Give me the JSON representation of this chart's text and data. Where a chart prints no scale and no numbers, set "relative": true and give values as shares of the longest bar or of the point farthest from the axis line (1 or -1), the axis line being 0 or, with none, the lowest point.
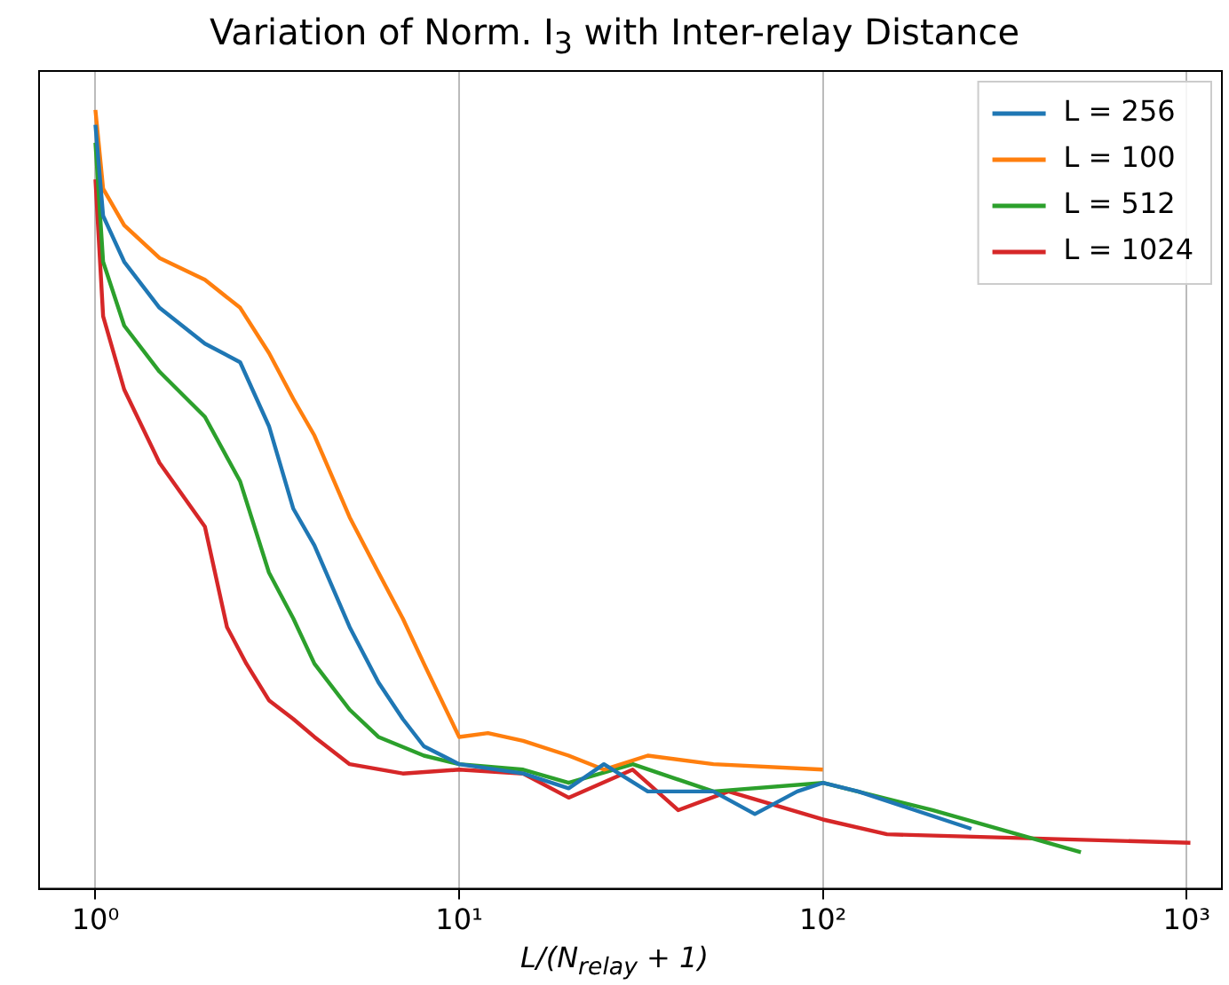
{
  "chart_data": {
    "type": "line",
    "title": "Variation of Norm. I$_{3}$ with Inter-relay Distance",
    "xlabel": "L/(N$_{relay}$ + 1)",
    "log": "x",
    "relative": true,
    "xlim": [
      0.7,
      1250
    ],
    "xticks": [
      {
        "value": 1,
        "label": "10⁰"
      },
      {
        "value": 10,
        "label": "10¹"
      },
      {
        "value": 100,
        "label": "10²"
      },
      {
        "value": 1000,
        "label": "10³"
      }
    ],
    "grid": "x",
    "legend": "top right",
    "marker": "none",
    "line_style": "solid",
    "series": [
      {
        "name": "L = 256",
        "color": "#1f77b4",
        "x": [
          1,
          1.05,
          1.2,
          1.5,
          2,
          2.5,
          3,
          3.5,
          4,
          5,
          6,
          7,
          8,
          10,
          15,
          20,
          25,
          33,
          50,
          65,
          85,
          100,
          125,
          256
        ],
        "values": [
          0.981,
          0.864,
          0.805,
          0.746,
          0.7,
          0.676,
          0.594,
          0.488,
          0.441,
          0.336,
          0.265,
          0.218,
          0.183,
          0.16,
          0.148,
          0.129,
          0.16,
          0.125,
          0.125,
          0.096,
          0.125,
          0.136,
          0.125,
          0.077
        ]
      },
      {
        "name": "L = 100",
        "color": "#ff7f0e",
        "x": [
          1,
          1.05,
          1.2,
          1.5,
          2,
          2.5,
          3,
          3.5,
          4,
          5,
          6,
          7,
          8,
          10,
          12,
          15,
          20,
          25,
          33,
          50,
          100
        ],
        "values": [
          1,
          0.899,
          0.852,
          0.81,
          0.782,
          0.746,
          0.688,
          0.629,
          0.582,
          0.477,
          0.406,
          0.347,
          0.289,
          0.195,
          0.2,
          0.19,
          0.171,
          0.153,
          0.171,
          0.16,
          0.153
        ]
      },
      {
        "name": "L = 512",
        "color": "#2ca02c",
        "x": [
          1,
          1.05,
          1.2,
          1.5,
          2,
          2.5,
          3,
          3.5,
          4,
          5,
          6,
          8,
          10,
          15,
          20,
          30,
          50,
          100,
          200,
          512
        ],
        "values": [
          0.958,
          0.805,
          0.723,
          0.664,
          0.606,
          0.523,
          0.406,
          0.347,
          0.289,
          0.23,
          0.195,
          0.171,
          0.16,
          0.153,
          0.136,
          0.16,
          0.125,
          0.136,
          0.101,
          0.047
        ]
      },
      {
        "name": "L = 1024",
        "color": "#d62728",
        "x": [
          1,
          1.05,
          1.2,
          1.5,
          2,
          2.3,
          2.6,
          3,
          3.5,
          4,
          5,
          7,
          10,
          15,
          20,
          30,
          40,
          55,
          100,
          150,
          1024
        ],
        "values": [
          0.911,
          0.735,
          0.641,
          0.547,
          0.465,
          0.336,
          0.289,
          0.242,
          0.218,
          0.195,
          0.16,
          0.148,
          0.153,
          0.148,
          0.117,
          0.153,
          0.101,
          0.125,
          0.089,
          0.07,
          0.059
        ]
      }
    ]
  }
}
